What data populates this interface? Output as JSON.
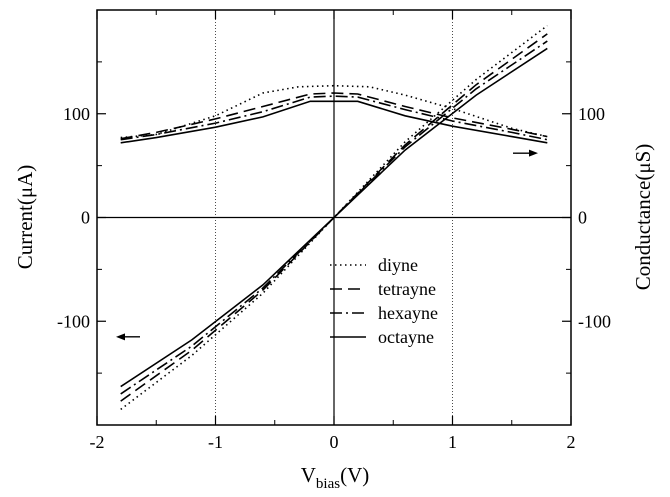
{
  "chart_data": {
    "type": "line",
    "xlabel_main": "V",
    "xlabel_sub": "bias",
    "xlabel_unit": "(V)",
    "ylabel_left": "Current(μA)",
    "ylabel_right": "Conductance(μS)",
    "xlim": [
      -2,
      2
    ],
    "ylim": [
      -200,
      200
    ],
    "x_ticks": [
      -2,
      -1,
      0,
      1,
      2
    ],
    "x_tick_labels": [
      "-2",
      "-1",
      "0",
      "1",
      "2"
    ],
    "y_ticks": [
      -100,
      0,
      100
    ],
    "y_tick_labels": [
      "-100",
      "0",
      "100"
    ],
    "y_right_ticks": [
      -100,
      0,
      100
    ],
    "y_right_tick_labels": [
      "-100",
      "0",
      "100"
    ],
    "legend_position": "lower-right",
    "grid": "vertical dotted lines at x = -1 and x = 1; solid zero lines",
    "current_arrow": "left, pointing to left axis",
    "conductance_arrow": "right, pointing to right axis",
    "series": [
      {
        "name": "diyne",
        "style": "dotted",
        "current": {
          "x": [
            -1.8,
            -1.2,
            -0.6,
            0,
            0.6,
            1.2,
            1.8
          ],
          "y": [
            -185,
            -133,
            -73,
            0,
            73,
            133,
            185
          ]
        },
        "conductance": {
          "x": [
            -1.8,
            -1.5,
            -1.0,
            -0.6,
            -0.3,
            0,
            0.3,
            0.6,
            1.0,
            1.5,
            1.8
          ],
          "y": [
            77,
            80,
            98,
            120,
            126,
            127,
            126,
            118,
            105,
            86,
            78
          ]
        }
      },
      {
        "name": "tetrayne",
        "style": "dashed",
        "current": {
          "x": [
            -1.8,
            -1.2,
            -0.6,
            0,
            0.6,
            1.2,
            1.8
          ],
          "y": [
            -177,
            -128,
            -70,
            0,
            70,
            128,
            177
          ]
        },
        "conductance": {
          "x": [
            -1.8,
            -1.5,
            -1.0,
            -0.6,
            -0.2,
            0,
            0.2,
            0.6,
            1.0,
            1.5,
            1.8
          ],
          "y": [
            76,
            82,
            95,
            107,
            119,
            120,
            119,
            107,
            96,
            85,
            78
          ]
        }
      },
      {
        "name": "hexayne",
        "style": "dash-dot",
        "current": {
          "x": [
            -1.8,
            -1.2,
            -0.6,
            0,
            0.6,
            1.2,
            1.8
          ],
          "y": [
            -170,
            -124,
            -68,
            0,
            68,
            124,
            170
          ]
        },
        "conductance": {
          "x": [
            -1.8,
            -1.5,
            -1.0,
            -0.6,
            -0.2,
            0,
            0.2,
            0.6,
            1.0,
            1.5,
            1.8
          ],
          "y": [
            75,
            80,
            91,
            102,
            116,
            117,
            116,
            104,
            93,
            82,
            75
          ]
        }
      },
      {
        "name": "octayne",
        "style": "solid",
        "current": {
          "x": [
            -1.8,
            -1.2,
            -0.6,
            0,
            0.6,
            1.2,
            1.8
          ],
          "y": [
            -163,
            -118,
            -65,
            0,
            65,
            118,
            163
          ]
        },
        "conductance": {
          "x": [
            -1.8,
            -1.5,
            -1.0,
            -0.6,
            -0.2,
            0,
            0.2,
            0.6,
            1.0,
            1.5,
            1.8
          ],
          "y": [
            72,
            77,
            87,
            97,
            112,
            112,
            112,
            98,
            88,
            78,
            72
          ]
        }
      }
    ]
  }
}
